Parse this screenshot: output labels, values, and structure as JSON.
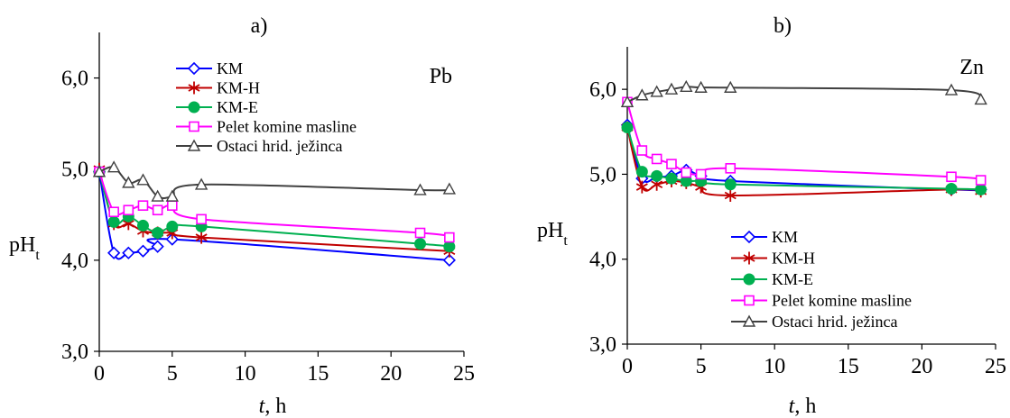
{
  "chart_data": [
    {
      "type": "line",
      "panel_label": "a)",
      "element_label": "Pb",
      "xlabel": "t, h",
      "ylabel": "pHt",
      "xlim": [
        0,
        25
      ],
      "ylim": [
        3.0,
        6.5
      ],
      "x_ticks": [
        "0",
        "5",
        "10",
        "15",
        "20",
        "25"
      ],
      "y_ticks": [
        "3,0",
        "4,0",
        "5,0",
        "6,0"
      ],
      "legend_position": "top-right",
      "series": [
        {
          "name": "KM",
          "x": [
            0,
            1,
            2,
            3,
            4,
            5,
            24
          ],
          "y": [
            4.97,
            4.08,
            4.08,
            4.1,
            4.15,
            4.23,
            4.0
          ]
        },
        {
          "name": "KM-H",
          "x": [
            0,
            1,
            2,
            3,
            4,
            5,
            7,
            24
          ],
          "y": [
            5.0,
            4.4,
            4.4,
            4.32,
            4.3,
            4.3,
            4.25,
            4.1
          ]
        },
        {
          "name": "KM-E",
          "x": [
            0,
            1,
            2,
            3,
            4,
            5,
            7,
            22,
            24
          ],
          "y": [
            4.97,
            4.42,
            4.48,
            4.38,
            4.3,
            4.37,
            4.37,
            4.18,
            4.15
          ]
        },
        {
          "name": "Pelet komine masline",
          "x": [
            0,
            1,
            2,
            3,
            4,
            5,
            7,
            22,
            24
          ],
          "y": [
            4.97,
            4.53,
            4.55,
            4.6,
            4.55,
            4.6,
            4.45,
            4.3,
            4.25
          ]
        },
        {
          "name": "Ostaci hrid. ježinca",
          "x": [
            0,
            1,
            2,
            3,
            4,
            5,
            7,
            22,
            24
          ],
          "y": [
            4.97,
            5.02,
            4.85,
            4.88,
            4.7,
            4.7,
            4.83,
            4.77,
            4.78
          ]
        }
      ]
    },
    {
      "type": "line",
      "panel_label": "b)",
      "element_label": "Zn",
      "xlabel": "t, h",
      "ylabel": "pHt",
      "xlim": [
        0,
        25
      ],
      "ylim": [
        3.0,
        6.5
      ],
      "x_ticks": [
        "0",
        "5",
        "10",
        "15",
        "20",
        "25"
      ],
      "y_ticks": [
        "3,0",
        "4,0",
        "5,0",
        "6,0"
      ],
      "legend_position": "bottom-right",
      "series": [
        {
          "name": "KM",
          "x": [
            0,
            1,
            2,
            3,
            4,
            5,
            7,
            22,
            24
          ],
          "y": [
            5.58,
            4.95,
            4.97,
            4.98,
            5.05,
            4.98,
            4.92,
            4.82,
            4.82
          ]
        },
        {
          "name": "KM-H",
          "x": [
            0,
            1,
            2,
            3,
            4,
            5,
            7,
            22,
            24
          ],
          "y": [
            5.55,
            4.85,
            4.88,
            4.92,
            4.9,
            4.85,
            4.75,
            4.82,
            4.8
          ]
        },
        {
          "name": "KM-E",
          "x": [
            0,
            1,
            2,
            3,
            4,
            5,
            7,
            22,
            24
          ],
          "y": [
            5.55,
            5.03,
            4.98,
            4.95,
            4.92,
            4.92,
            4.88,
            4.83,
            4.82
          ]
        },
        {
          "name": "Pelet komine masline",
          "x": [
            0,
            1,
            2,
            3,
            4,
            5,
            7,
            22,
            24
          ],
          "y": [
            5.85,
            5.28,
            5.18,
            5.12,
            5.02,
            5.0,
            5.07,
            4.97,
            4.93
          ]
        },
        {
          "name": "Ostaci hrid. ježinca",
          "x": [
            0,
            1,
            2,
            3,
            4,
            5,
            7,
            22,
            24
          ],
          "y": [
            5.85,
            5.93,
            5.97,
            6.0,
            6.03,
            6.02,
            6.02,
            5.99,
            5.88
          ]
        }
      ]
    }
  ],
  "style": {
    "series_colors": [
      "#0000ff",
      "#c00000",
      "#00b050",
      "#ff00ff",
      "#404040"
    ],
    "series_markers": [
      "diamond",
      "star",
      "circle",
      "square",
      "triangle"
    ]
  }
}
